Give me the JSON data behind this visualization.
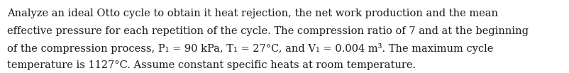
{
  "background_color": "#ffffff",
  "text_color": "#1a1a1a",
  "font_size": 10.5,
  "line1": "Analyze an ideal Otto cycle to obtain it heat rejection, the net work production and the mean",
  "line2": "effective pressure for each repetition of the cycle. The compression ratio of 7 and at the beginning",
  "line3": "of the compression process, P₁ = 90 kPa, T₁ = 27°C, and V₁ = 0.004 m³. The maximum cycle",
  "line4": "temperature is 1127°C. Assume constant specific heats at room temperature.",
  "figwidth": 8.03,
  "figheight": 1.03,
  "dpi": 100
}
